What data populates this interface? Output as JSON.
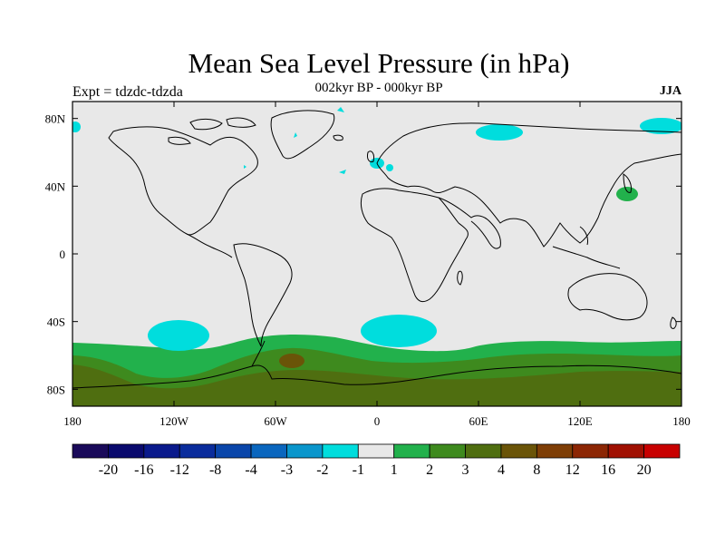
{
  "title": "Mean Sea Level Pressure (in hPa)",
  "subtitle": "002kyr BP - 000kyr BP",
  "left_label": "Expt = tdzdc-tdzda",
  "right_label": "JJA",
  "x_ticks": [
    "180",
    "120W",
    "60W",
    "0",
    "60E",
    "120E",
    "180"
  ],
  "y_ticks": [
    "80N",
    "40N",
    "0",
    "40S",
    "80S"
  ],
  "colorbar": {
    "colors": [
      "#1a0a5a",
      "#0a0a6e",
      "#0a1a8c",
      "#0a2c9c",
      "#0a46aa",
      "#0a66be",
      "#0a96cc",
      "#00dddd",
      "#e8e8e8",
      "#22b14c",
      "#3e8a1e",
      "#4f6e10",
      "#6a5408",
      "#7e3e06",
      "#8c2604",
      "#a01002",
      "#c80000"
    ],
    "labels": [
      "-20",
      "-16",
      "-12",
      "-8",
      "-4",
      "-3",
      "-2",
      "-1",
      "1",
      "2",
      "3",
      "4",
      "8",
      "12",
      "16",
      "20"
    ]
  },
  "colors": {
    "neutral": "#e8e8e8",
    "negative": "#00dddd",
    "pos2": "#22b14c",
    "pos3": "#3e8a1e",
    "pos4": "#4f6e10",
    "pos8": "#6a5408"
  }
}
